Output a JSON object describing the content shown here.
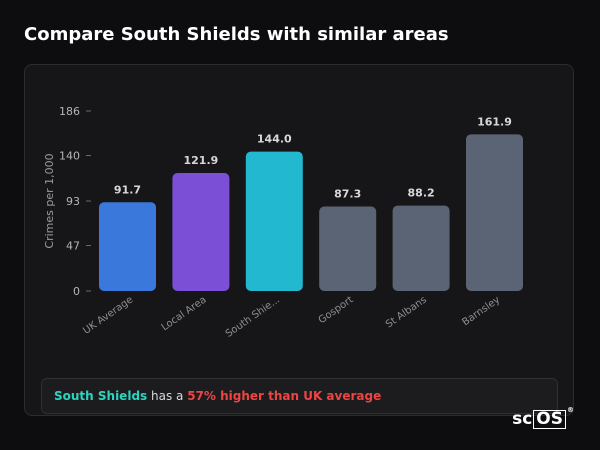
{
  "page": {
    "title": "Compare South Shields with similar areas"
  },
  "chart_data": {
    "type": "bar",
    "ylabel": "Crimes per 1,000",
    "xlabel": "",
    "ylim": [
      0,
      186
    ],
    "yticks": [
      0,
      47,
      93,
      140,
      186
    ],
    "ytick_labels": [
      "0",
      "47",
      "93",
      "140",
      "186"
    ],
    "categories": [
      "UK Average",
      "Local Area",
      "South Shie...",
      "Gosport",
      "St Albans",
      "Barnsley"
    ],
    "values": [
      91.7,
      121.9,
      144.0,
      87.3,
      88.2,
      161.9
    ],
    "value_labels": [
      "91.7",
      "121.9",
      "144.0",
      "87.3",
      "88.2",
      "161.9"
    ],
    "colors": [
      "#3a78dc",
      "#7b4fd6",
      "#22b8d0",
      "#5a6474",
      "#5a6474",
      "#5a6474"
    ],
    "grid": false,
    "legend": "none"
  },
  "summary": {
    "area": "South Shields",
    "connector": " has a ",
    "comparison": "57% higher than UK average"
  },
  "brand": {
    "prefix": "sc",
    "boxed": "OS",
    "mark": "®"
  }
}
